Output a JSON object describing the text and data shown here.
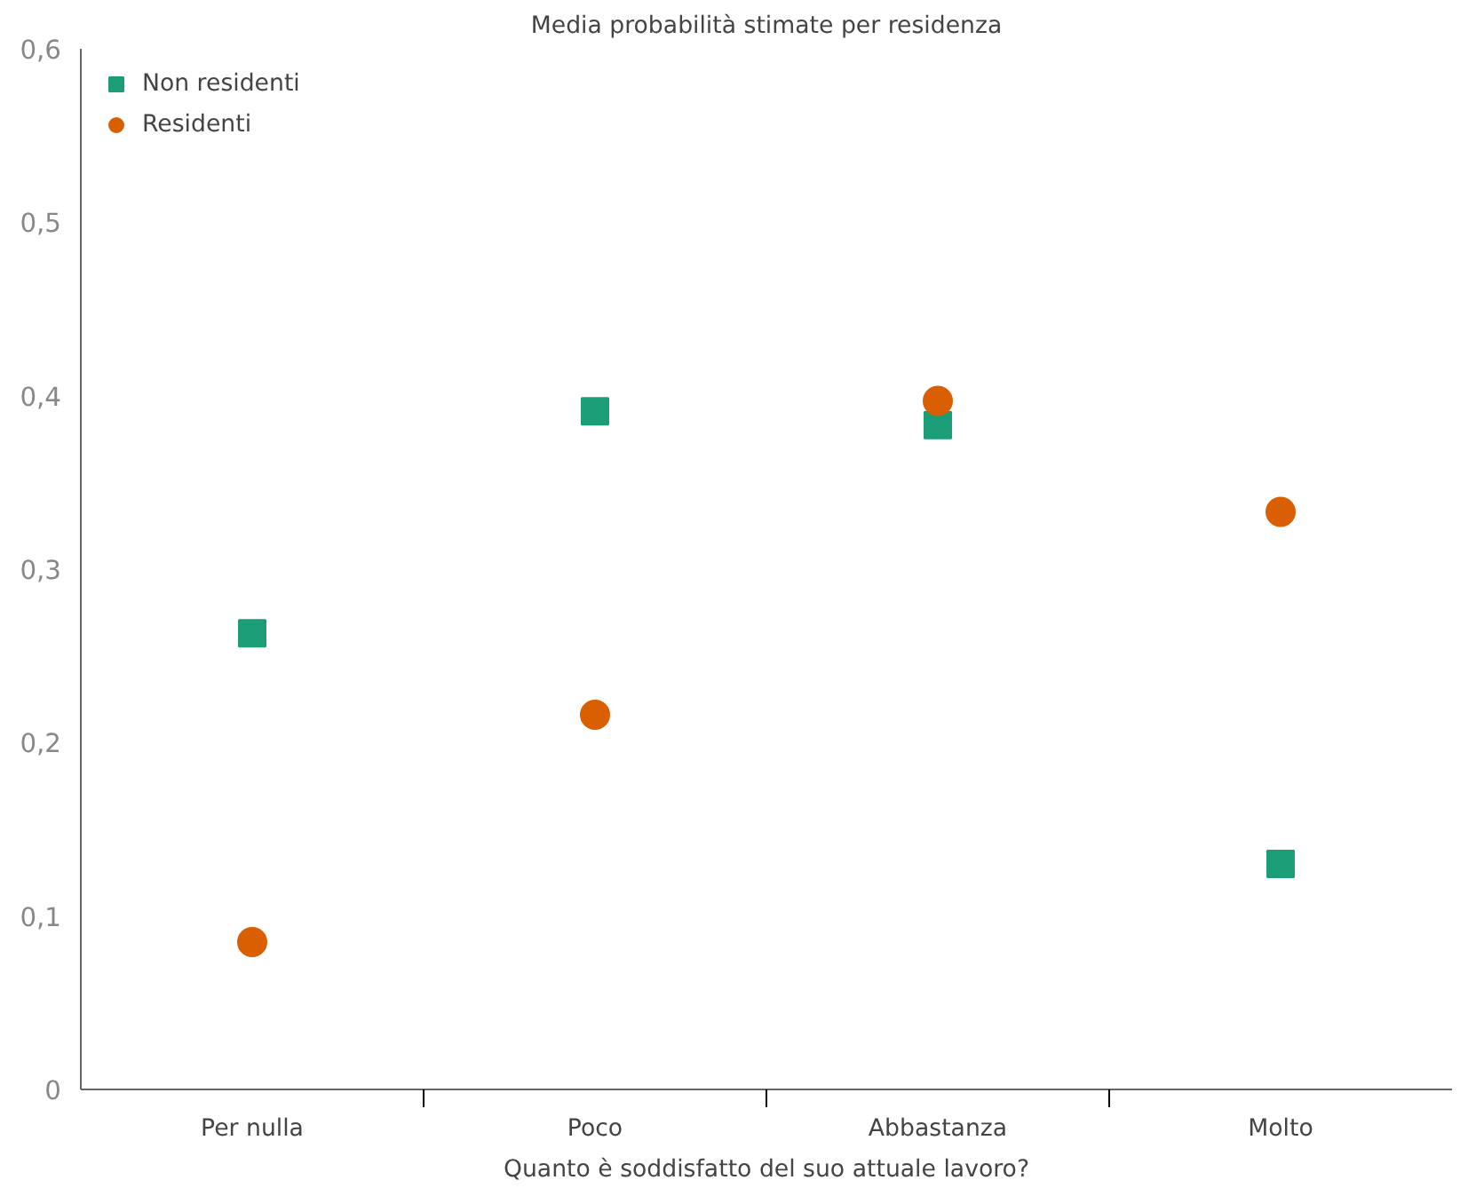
{
  "chart_data": {
    "type": "scatter",
    "title": "Media probabilità stimate per residenza",
    "xlabel": "Quanto è soddisfatto del suo attuale lavoro?",
    "categories": [
      "Per nulla",
      "Poco",
      "Abbastanza",
      "Molto"
    ],
    "series": [
      {
        "name": "Non residenti",
        "color": "#1b9e77",
        "marker": "square",
        "values": [
          0.263,
          0.391,
          0.383,
          0.13
        ]
      },
      {
        "name": "Residenti",
        "color": "#d95f02",
        "marker": "circle",
        "values": [
          0.085,
          0.216,
          0.397,
          0.333
        ]
      }
    ],
    "ylim": [
      0,
      0.6
    ],
    "yticks": [
      {
        "value": 0,
        "label": "0"
      },
      {
        "value": 0.1,
        "label": "0,1"
      },
      {
        "value": 0.2,
        "label": "0,2"
      },
      {
        "value": 0.3,
        "label": "0,3"
      },
      {
        "value": 0.4,
        "label": "0,4"
      },
      {
        "value": 0.5,
        "label": "0,5"
      },
      {
        "value": 0.6,
        "label": "0,6"
      }
    ],
    "grid": false,
    "legend": "top left"
  }
}
